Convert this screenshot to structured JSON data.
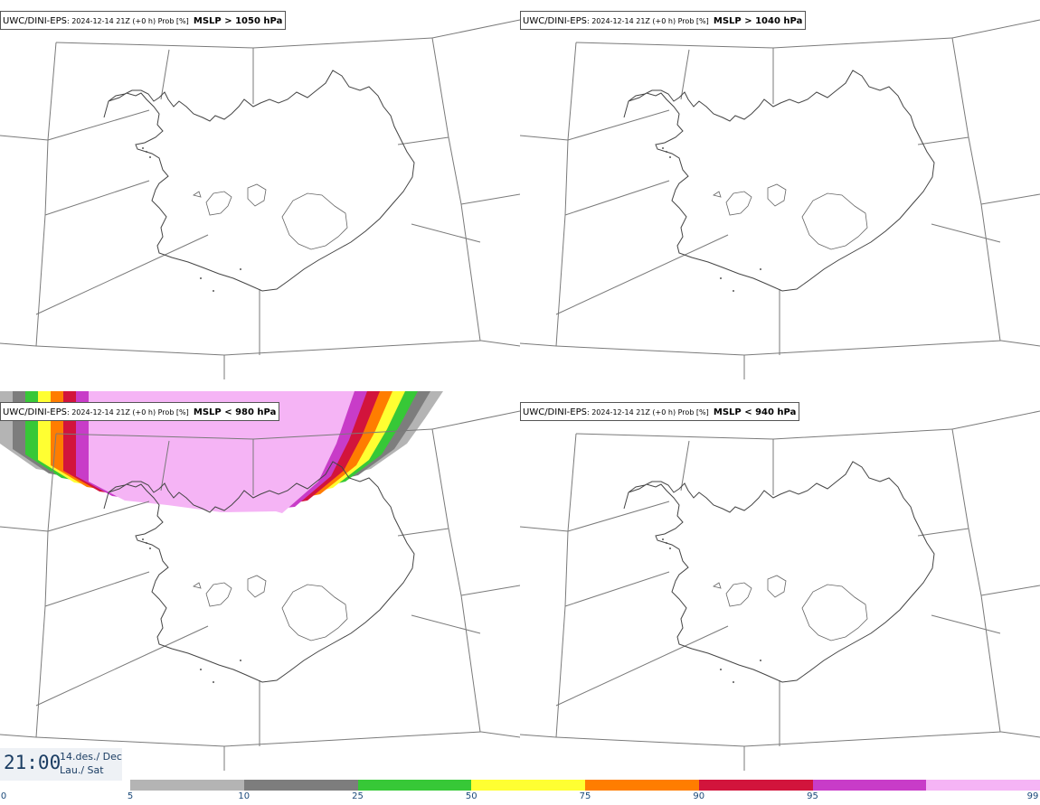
{
  "panels": [
    {
      "model": "UWC/DINI-EPS",
      "meta": ": 2024-12-14 21Z (+0 h) Prob [%]",
      "variable": "MSLP > 1050 hPa",
      "has_overlay": false
    },
    {
      "model": "UWC/DINI-EPS",
      "meta": ": 2024-12-14 21Z (+0 h) Prob [%]",
      "variable": "MSLP > 1040 hPa",
      "has_overlay": false
    },
    {
      "model": "UWC/DINI-EPS",
      "meta": ": 2024-12-14 21Z (+0 h) Prob [%]",
      "variable": "MSLP < 980 hPa",
      "has_overlay": true
    },
    {
      "model": "UWC/DINI-EPS",
      "meta": ": 2024-12-14 21Z (+0 h) Prob [%]",
      "variable": "MSLP < 940 hPa",
      "has_overlay": false
    }
  ],
  "time": {
    "clock": "21:00",
    "date": "14.des./ Dec",
    "day": "Lau./ Sat"
  },
  "colorbar": {
    "ticks": [
      "0",
      "5",
      "10",
      "25",
      "50",
      "75",
      "90",
      "95",
      "99"
    ],
    "colors": [
      "#b4b4b4",
      "#7d7d7d",
      "#37c837",
      "#ffff32",
      "#ff7d00",
      "#d2143c",
      "#c83cc8",
      "#f5b4f5"
    ]
  }
}
